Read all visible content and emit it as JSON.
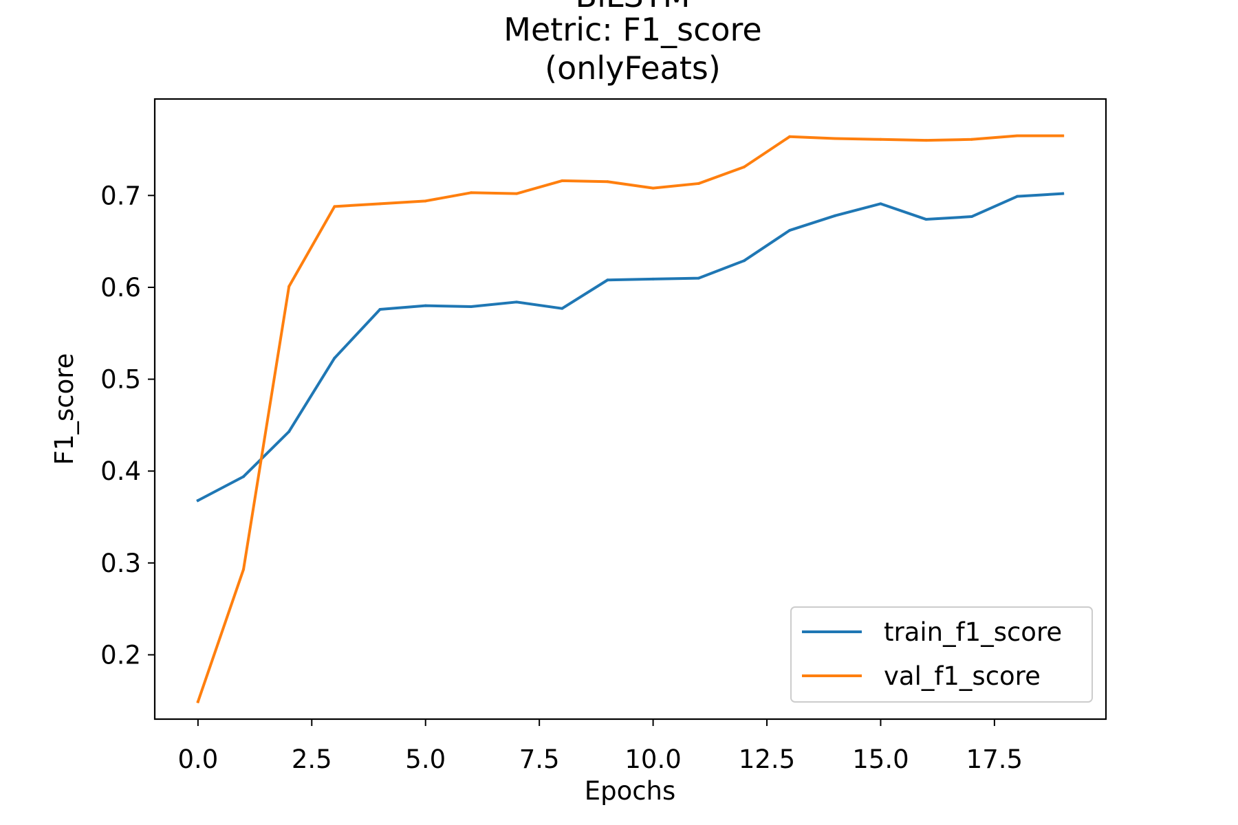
{
  "chart_data": {
    "type": "line",
    "title": "BiLSTM",
    "subtitle_lines": [
      "Metric: F1_score",
      "(onlyFeats)"
    ],
    "xlabel": "Epochs",
    "ylabel": "F1_score",
    "xlim": [
      -0.95,
      19.95
    ],
    "ylim": [
      0.13,
      0.805
    ],
    "xticks": [
      0.0,
      2.5,
      5.0,
      7.5,
      10.0,
      12.5,
      15.0,
      17.5
    ],
    "xtick_labels": [
      "0.0",
      "2.5",
      "5.0",
      "7.5",
      "10.0",
      "12.5",
      "15.0",
      "17.5"
    ],
    "yticks": [
      0.2,
      0.3,
      0.4,
      0.5,
      0.6,
      0.7
    ],
    "ytick_labels": [
      "0.2",
      "0.3",
      "0.4",
      "0.5",
      "0.6",
      "0.7"
    ],
    "grid": false,
    "legend_position": "lower-right",
    "x": [
      0,
      1,
      2,
      3,
      4,
      5,
      6,
      7,
      8,
      9,
      10,
      11,
      12,
      13,
      14,
      15,
      16,
      17,
      18,
      19
    ],
    "series": [
      {
        "name": "train_f1_score",
        "color": "#1f77b4",
        "values": [
          0.368,
          0.394,
          0.443,
          0.523,
          0.576,
          0.58,
          0.579,
          0.584,
          0.577,
          0.608,
          0.609,
          0.61,
          0.629,
          0.662,
          0.678,
          0.691,
          0.674,
          0.677,
          0.699,
          0.702
        ]
      },
      {
        "name": "val_f1_score",
        "color": "#ff7f0e",
        "values": [
          0.149,
          0.293,
          0.601,
          0.688,
          0.691,
          0.694,
          0.703,
          0.702,
          0.716,
          0.715,
          0.708,
          0.713,
          0.731,
          0.764,
          0.762,
          0.761,
          0.76,
          0.761,
          0.765,
          0.765
        ]
      }
    ]
  }
}
